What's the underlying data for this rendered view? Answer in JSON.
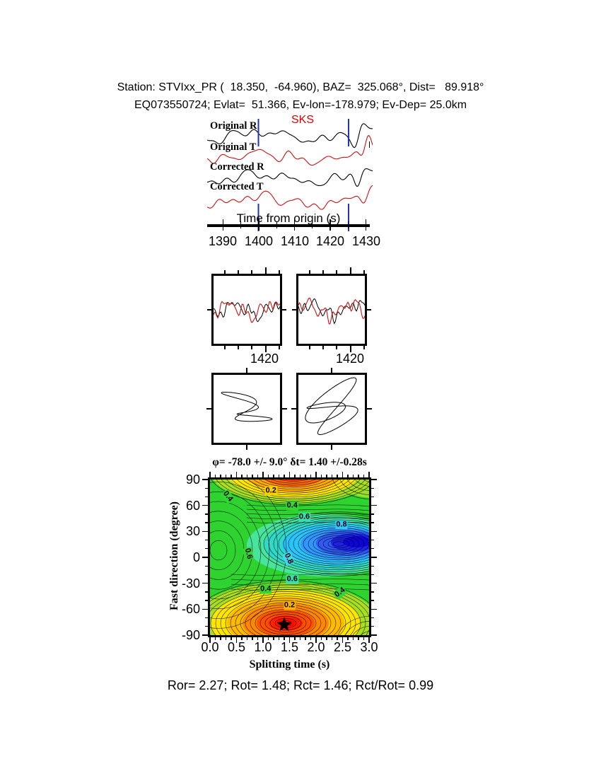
{
  "header": {
    "line1": "Station: STVIxx_PR (  18.350,  -64.960), BAZ=  325.068°, Dist=   89.918°",
    "line2": "EQ073550724; Evlat=  51.366, Ev-lon=-178.979; Ev-Dep= 25.0km"
  },
  "seismogram": {
    "phase_label": "SKS",
    "phase_color": "#dd0000",
    "traces": [
      {
        "label": "Original R",
        "color": "#000000"
      },
      {
        "label": "Original T",
        "color": "#cc1111"
      },
      {
        "label": "Corrected R",
        "color": "#000000"
      },
      {
        "label": "Corrected T",
        "color": "#cc1111"
      }
    ],
    "xlabel": "Time from origin (s)",
    "xticks": [
      "1390",
      "1400",
      "1410",
      "1420",
      "1430"
    ],
    "window_marker_color": "#2233bb",
    "window_markers_s": [
      1400,
      1425
    ]
  },
  "waveform_panels": {
    "left_tick_label": "1420",
    "right_tick_label": "1420",
    "trace_colors": [
      "#000000",
      "#cc1111"
    ]
  },
  "contour": {
    "title": "φ= -78.0 +/- 9.0° δt= 1.40 +/-0.28s",
    "ylabel": "Fast direction (degree)",
    "xlabel": "Splitting time (s)",
    "yticks": [
      "90",
      "60",
      "30",
      "0",
      "-30",
      "-60",
      "-90"
    ],
    "xticks": [
      "0.0",
      "0.5",
      "1.0",
      "1.5",
      "2.0",
      "2.5",
      "3.0"
    ],
    "best_fit": {
      "phi_deg": -78.0,
      "phi_err_deg": 9.0,
      "dt_s": 1.4,
      "dt_err_s": 0.28
    },
    "annotations": [
      {
        "text": "0.2",
        "t": 1.15,
        "phi": 77,
        "bg": "#ffd000",
        "rot": 0
      },
      {
        "text": "0.4",
        "t": 0.33,
        "phi": 70,
        "bg": "#33d633",
        "rot": 52
      },
      {
        "text": "0.4",
        "t": 1.55,
        "phi": 60,
        "bg": "#33d633",
        "rot": 0
      },
      {
        "text": "0.6",
        "t": 1.78,
        "phi": 47,
        "bg": "#37dfae",
        "rot": 0
      },
      {
        "text": "0.8",
        "t": 2.48,
        "phi": 38,
        "bg": "#35c8ff",
        "rot": 0
      },
      {
        "text": "0.6",
        "t": 0.72,
        "phi": 4,
        "bg": "#33d633",
        "rot": 75
      },
      {
        "text": "0.8",
        "t": 1.48,
        "phi": -2,
        "bg": "#45d5e8",
        "rot": 65
      },
      {
        "text": "0.6",
        "t": 1.55,
        "phi": -25,
        "bg": "#37dfae",
        "rot": 0
      },
      {
        "text": "0.4",
        "t": 1.05,
        "phi": -37,
        "bg": "#33d633",
        "rot": 0
      },
      {
        "text": "0.4",
        "t": 2.45,
        "phi": -41,
        "bg": "#33d633",
        "rot": -38
      },
      {
        "text": "0.2",
        "t": 1.5,
        "phi": -56,
        "bg": "#ffb300",
        "rot": 0
      }
    ]
  },
  "footer": {
    "stats": "Ror= 2.27; Rot= 1.48; Rct= 1.46; Rct/Rot= 0.99"
  },
  "chart_data": [
    {
      "type": "line",
      "title": "Seismogram traces",
      "xlabel": "Time from origin (s)",
      "x_range": [
        1385,
        1432
      ],
      "xticks": [
        1390,
        1400,
        1410,
        1420,
        1430
      ],
      "series": [
        {
          "name": "Original R"
        },
        {
          "name": "Original T"
        },
        {
          "name": "Corrected R"
        },
        {
          "name": "Corrected T"
        }
      ],
      "phase_annotation": "SKS",
      "window_markers_s": [
        1400,
        1425
      ]
    },
    {
      "type": "line",
      "title": "Waveform overlay panels (black vs red)",
      "xticks": [
        1420
      ],
      "panels": 2
    },
    {
      "type": "scatter",
      "title": "Particle motion panels",
      "panels": 2
    },
    {
      "type": "contour",
      "title": "φ= -78.0 +/- 9.0° δt= 1.40 +/-0.28s",
      "xlabel": "Splitting time (s)",
      "ylabel": "Fast direction (degree)",
      "xlim": [
        0,
        3
      ],
      "ylim": [
        -90,
        90
      ],
      "xticks": [
        0.0,
        0.5,
        1.0,
        1.5,
        2.0,
        2.5,
        3.0
      ],
      "yticks": [
        90,
        60,
        30,
        0,
        -30,
        -60,
        -90
      ],
      "contour_levels": [
        0.2,
        0.4,
        0.6,
        0.8
      ],
      "best_fit": {
        "phi_deg": -78.0,
        "phi_err_deg": 9.0,
        "dt_s": 1.4,
        "dt_err_s": 0.28
      },
      "minimum_marker": "star",
      "features": {
        "low_misfit_blue_region": {
          "t": 2.7,
          "phi": 15
        },
        "high_regions_red": [
          {
            "t": 1.4,
            "phi": -78
          },
          {
            "t": 1.4,
            "phi": 90
          }
        ]
      }
    }
  ]
}
